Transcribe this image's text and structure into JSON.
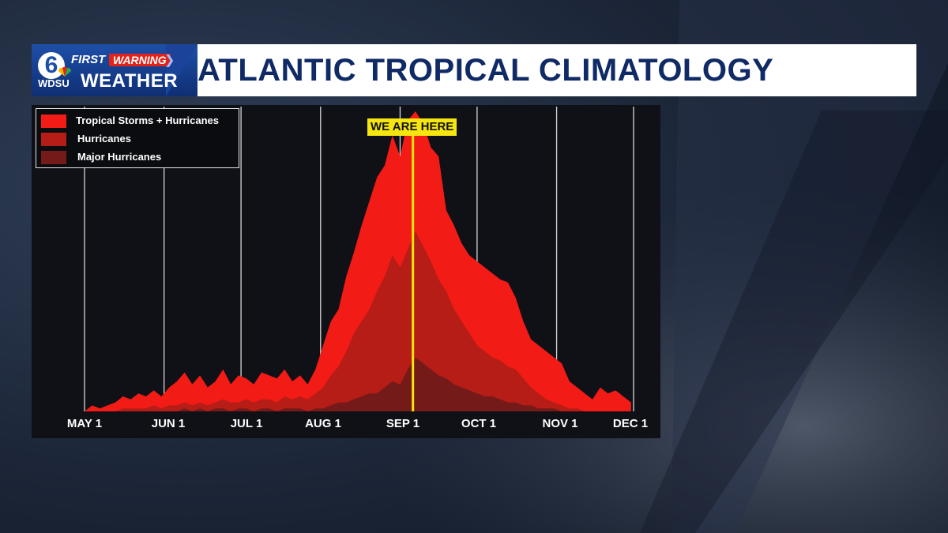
{
  "header": {
    "logo": {
      "number": "6",
      "first": "FIRST",
      "warning": "WARNING",
      "station": "WDSU",
      "weather": "WEATHER"
    },
    "title": "ATLANTIC TROPICAL CLIMATOLOGY"
  },
  "colors": {
    "banner_blue": "#1d4fa8",
    "title_navy": "#102a66",
    "tropical": "#f21b16",
    "hurricanes": "#b51d16",
    "major": "#741a18",
    "marker": "#f5e60f"
  },
  "chart_data": {
    "type": "area",
    "title": "ATLANTIC TROPICAL CLIMATOLOGY",
    "xlabel": "",
    "ylabel": "",
    "x_ticks": [
      "MAY 1",
      "JUN 1",
      "JUL 1",
      "AUG 1",
      "SEP 1",
      "OCT 1",
      "NOV 1",
      "DEC 1"
    ],
    "x_tick_days": [
      0,
      31,
      61,
      92,
      123,
      153,
      184,
      214
    ],
    "xlim": [
      0,
      214
    ],
    "ylim": [
      0,
      100
    ],
    "grid": "vertical lines at month starts",
    "legend_position": "top-left",
    "marker": {
      "label": "WE ARE HERE",
      "day": 128
    },
    "x": [
      0,
      3,
      6,
      9,
      12,
      15,
      18,
      21,
      24,
      27,
      30,
      33,
      36,
      39,
      42,
      45,
      48,
      51,
      54,
      57,
      60,
      63,
      66,
      69,
      72,
      75,
      78,
      81,
      84,
      87,
      90,
      93,
      96,
      99,
      102,
      105,
      108,
      111,
      114,
      117,
      120,
      123,
      126,
      129,
      132,
      135,
      138,
      141,
      144,
      147,
      150,
      153,
      156,
      159,
      162,
      165,
      168,
      171,
      174,
      177,
      180,
      183,
      186,
      189,
      192,
      195,
      198,
      201,
      204,
      207,
      210,
      213
    ],
    "series": [
      {
        "name": "Tropical Storms + Hurricanes",
        "color": "#f21b16",
        "values": [
          0,
          2,
          1,
          2,
          3,
          5,
          4,
          6,
          5,
          7,
          5,
          8,
          10,
          13,
          9,
          12,
          8,
          10,
          14,
          9,
          12,
          11,
          9,
          13,
          12,
          11,
          14,
          10,
          12,
          9,
          14,
          22,
          30,
          34,
          45,
          53,
          62,
          70,
          78,
          82,
          92,
          85,
          97,
          100,
          96,
          88,
          85,
          67,
          62,
          56,
          52,
          50,
          48,
          46,
          44,
          43,
          38,
          30,
          24,
          22,
          20,
          18,
          16,
          10,
          8,
          6,
          4,
          8,
          6,
          7,
          5,
          3
        ]
      },
      {
        "name": "Hurricanes",
        "color": "#b51d16",
        "values": [
          0,
          0,
          0,
          0,
          0,
          1,
          1,
          1,
          1,
          2,
          1,
          2,
          2,
          3,
          2,
          3,
          2,
          3,
          4,
          3,
          3,
          4,
          3,
          4,
          4,
          3,
          5,
          4,
          5,
          4,
          6,
          8,
          12,
          15,
          20,
          26,
          30,
          34,
          40,
          45,
          52,
          48,
          54,
          60,
          55,
          50,
          44,
          40,
          34,
          30,
          26,
          22,
          20,
          18,
          17,
          15,
          14,
          11,
          8,
          6,
          4,
          3,
          2,
          1,
          1,
          0,
          0,
          0,
          0,
          0,
          0,
          0
        ]
      },
      {
        "name": "Major Hurricanes",
        "color": "#741a18",
        "values": [
          0,
          0,
          0,
          0,
          0,
          0,
          0,
          0,
          0,
          0,
          0,
          0,
          0,
          1,
          0,
          1,
          0,
          1,
          1,
          0,
          1,
          1,
          0,
          1,
          1,
          0,
          1,
          1,
          1,
          0,
          1,
          1,
          2,
          3,
          3,
          4,
          5,
          6,
          6,
          8,
          10,
          9,
          14,
          18,
          16,
          14,
          12,
          11,
          9,
          8,
          7,
          6,
          5,
          5,
          4,
          3,
          3,
          2,
          2,
          1,
          1,
          1,
          0,
          0,
          0,
          0,
          0,
          0,
          0,
          0,
          0,
          0
        ]
      }
    ]
  }
}
